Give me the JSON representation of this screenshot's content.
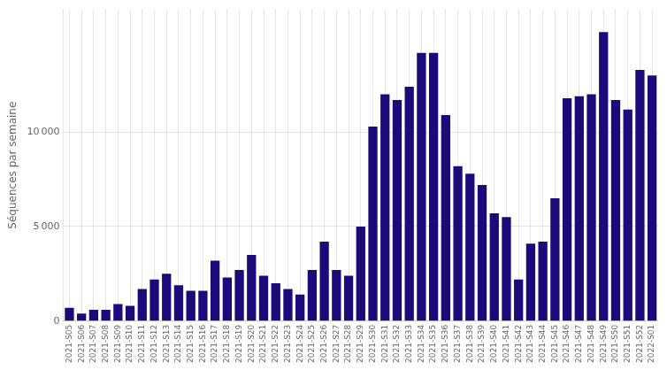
{
  "chart_data": {
    "type": "bar",
    "ylabel": "Séquences par semaine",
    "categories": [
      "2021-S05",
      "2021-S06",
      "2021-S07",
      "2021-S08",
      "2021-S09",
      "2021-S10",
      "2021-S11",
      "2021-S12",
      "2021-S13",
      "2021-S14",
      "2021-S15",
      "2021-S16",
      "2021-S17",
      "2021-S18",
      "2021-S19",
      "2021-S20",
      "2021-S21",
      "2021-S22",
      "2021-S23",
      "2021-S24",
      "2021-S25",
      "2021-S26",
      "2021-S27",
      "2021-S28",
      "2021-S29",
      "2021-S30",
      "2021-S31",
      "2021-S32",
      "2021-S33",
      "2021-S34",
      "2021-S35",
      "2021-S36",
      "2021-S37",
      "2021-S38",
      "2021-S39",
      "2021-S40",
      "2021-S41",
      "2021-S42",
      "2021-S43",
      "2021-S44",
      "2021-S45",
      "2021-S46",
      "2021-S47",
      "2021-S48",
      "2021-S49",
      "2021-S50",
      "2021-S51",
      "2021-S52",
      "2022-S01"
    ],
    "values": [
      700,
      400,
      600,
      600,
      900,
      800,
      1700,
      2200,
      2500,
      1900,
      1600,
      1600,
      3200,
      2300,
      2700,
      3500,
      2400,
      2000,
      1700,
      1400,
      2700,
      4200,
      2700,
      2400,
      5000,
      10300,
      12000,
      11700,
      12400,
      14200,
      14200,
      10900,
      8200,
      7800,
      7200,
      5700,
      5500,
      2200,
      4100,
      4200,
      6500,
      11800,
      11900,
      12000,
      15300,
      11700,
      11200,
      13300,
      13000
    ],
    "color": "#1a0a7a",
    "ylim": [
      0,
      16500
    ],
    "yticks": [
      0,
      {
        "value": 5000,
        "label": "5 000"
      },
      {
        "value": 10000,
        "label": "10 000"
      }
    ],
    "grid": true
  }
}
